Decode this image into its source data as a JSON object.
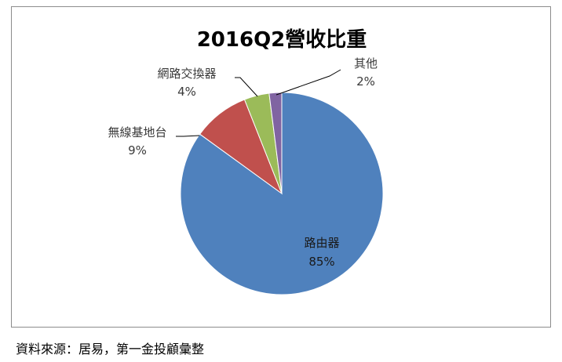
{
  "chart_data": {
    "type": "pie",
    "title": "2016Q2營收比重",
    "categories": [
      "路由器",
      "無線基地台",
      "網路交換器",
      "其他"
    ],
    "values": [
      85,
      9,
      4,
      2
    ],
    "value_labels": [
      "85%",
      "9%",
      "4%",
      "2%"
    ],
    "colors": [
      "#4f81bd",
      "#c0504d",
      "#9bbb59",
      "#8064a2"
    ],
    "legend": "none"
  },
  "source": "資料來源：居易，第一金投顧彙整"
}
